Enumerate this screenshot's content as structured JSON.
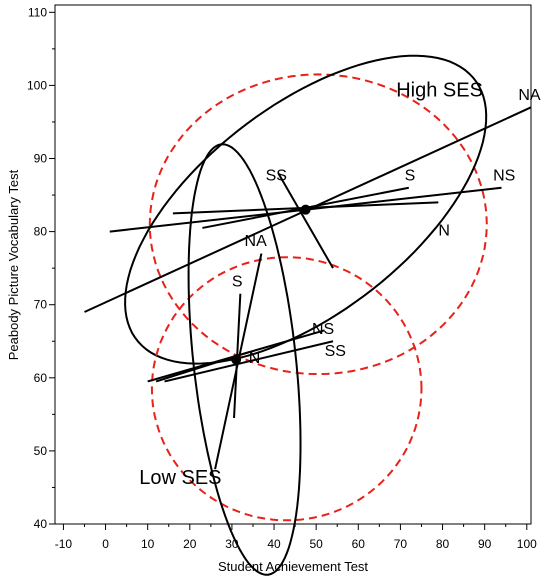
{
  "chart_data": {
    "type": "scatter",
    "xlabel": "Student Achievement Test",
    "ylabel": "Peabody Picture Vocabulary Test",
    "xlim": [
      -12,
      101
    ],
    "ylim": [
      40,
      111
    ],
    "x_ticks": [
      -10,
      0,
      10,
      20,
      30,
      40,
      50,
      60,
      70,
      80,
      90,
      100
    ],
    "y_ticks": [
      40,
      50,
      60,
      70,
      80,
      90,
      100,
      110
    ],
    "grid": false,
    "colors": {
      "data_ellipse": "#000000",
      "hypothesis_ellipse": "#e8211a"
    },
    "groups": [
      {
        "name": "High SES",
        "label_position": [
          69,
          98.5
        ],
        "mean": [
          47.5,
          83
        ],
        "data_ellipse": {
          "center": [
            47.5,
            83
          ],
          "rx": 45,
          "ry": 16,
          "angle_deg": 19
        },
        "hypothesis_ellipse": {
          "center": [
            50.5,
            81
          ],
          "rx": 40,
          "ry": 20.5,
          "angle_deg": 0
        },
        "vectors": [
          {
            "label": "NA",
            "from": [
              -5,
              69
            ],
            "to": [
              101,
              97
            ],
            "label_at": [
              98,
              98
            ]
          },
          {
            "label": "SS",
            "from": [
              41,
              88
            ],
            "to": [
              54,
              75
            ],
            "label_at": [
              38,
              87
            ]
          },
          {
            "label": "S",
            "from": [
              23,
              80.5
            ],
            "to": [
              72,
              86
            ],
            "label_at": [
              71,
              87
            ]
          },
          {
            "label": "NS",
            "from": [
              1,
              80
            ],
            "to": [
              94,
              86
            ],
            "label_at": [
              92,
              87
            ]
          },
          {
            "label": "N",
            "from": [
              16,
              82.5
            ],
            "to": [
              79,
              84
            ],
            "label_at": [
              79,
              79.5
            ]
          }
        ]
      },
      {
        "name": "Low SES",
        "label_position": [
          8,
          45.5
        ],
        "mean": [
          31,
          62.5
        ],
        "data_ellipse": {
          "center": [
            33,
            62.5
          ],
          "rx": 12,
          "ry": 30,
          "angle_deg": 12
        },
        "hypothesis_ellipse": {
          "center": [
            43,
            58.5
          ],
          "rx": 32,
          "ry": 18,
          "angle_deg": 0
        },
        "vectors": [
          {
            "label": "NA",
            "from": [
              26,
              47.5
            ],
            "to": [
              37,
              77
            ],
            "label_at": [
              33,
              78
            ]
          },
          {
            "label": "S",
            "from": [
              30.5,
              54.5
            ],
            "to": [
              32,
              71.5
            ],
            "label_at": [
              30,
              72.5
            ]
          },
          {
            "label": "N",
            "from": [
              12,
              59.5
            ],
            "to": [
              34,
              63.5
            ],
            "label_at": [
              34,
              62
            ]
          },
          {
            "label": "NS",
            "from": [
              10,
              59.5
            ],
            "to": [
              52,
              66.5
            ],
            "label_at": [
              49,
              66
            ]
          },
          {
            "label": "SS",
            "from": [
              14,
              59.5
            ],
            "to": [
              54,
              65
            ],
            "label_at": [
              52,
              63
            ]
          }
        ]
      }
    ]
  }
}
